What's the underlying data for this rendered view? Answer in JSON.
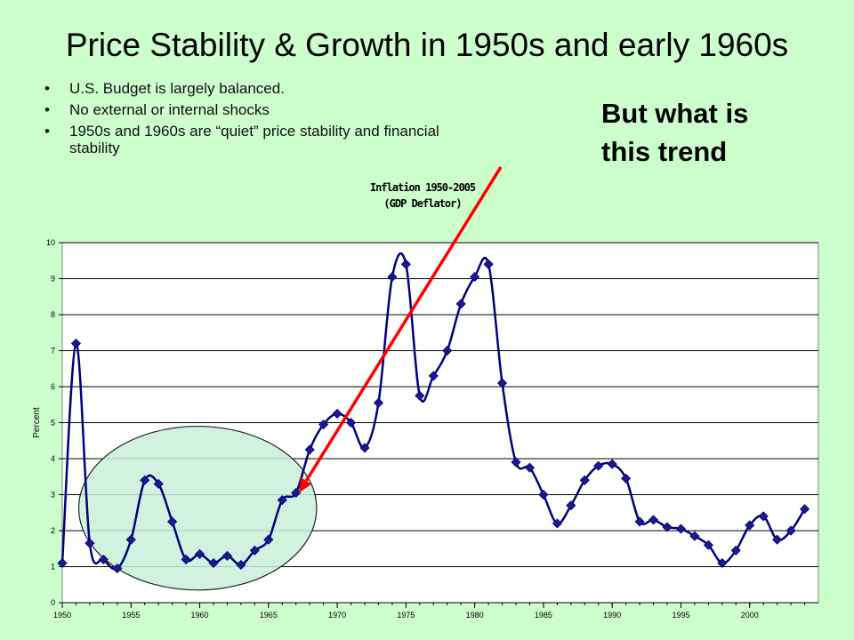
{
  "slide": {
    "title": "Price Stability & Growth in 1950s and early 1960s",
    "bullets": [
      "U.S. Budget is largely balanced.",
      "No external or internal shocks",
      "1950s and 1960s are “quiet”  price stability and financial stability"
    ],
    "bullet_glyph": "•",
    "callout_lines": [
      "But what is",
      "this trend"
    ]
  },
  "chart_data": {
    "type": "line",
    "title_lines": [
      "Inflation 1950-2005",
      "(GDP Deflator)"
    ],
    "xlabel": "",
    "ylabel": "Percent",
    "xlim": [
      1950,
      2005
    ],
    "ylim": [
      0,
      10
    ],
    "grid": true,
    "x_ticks": [
      1950,
      1955,
      1960,
      1965,
      1970,
      1975,
      1980,
      1985,
      1990,
      1995,
      2000
    ],
    "y_ticks": [
      0,
      1,
      2,
      3,
      4,
      5,
      6,
      7,
      8,
      9,
      10
    ],
    "series": [
      {
        "color": "#000080",
        "marker_color": "#1a1a8c",
        "x": [
          1950,
          1951,
          1952,
          1953,
          1954,
          1955,
          1956,
          1957,
          1958,
          1959,
          1960,
          1961,
          1962,
          1963,
          1964,
          1965,
          1966,
          1967,
          1968,
          1969,
          1970,
          1971,
          1972,
          1973,
          1974,
          1975,
          1976,
          1977,
          1978,
          1979,
          1980,
          1981,
          1982,
          1983,
          1984,
          1985,
          1986,
          1987,
          1988,
          1989,
          1990,
          1991,
          1992,
          1993,
          1994,
          1995,
          1996,
          1997,
          1998,
          1999,
          2000,
          2001,
          2002,
          2003,
          2004
        ],
        "y": [
          1.1,
          7.2,
          1.65,
          1.2,
          0.95,
          1.75,
          3.4,
          3.3,
          2.25,
          1.2,
          1.35,
          1.1,
          1.3,
          1.05,
          1.45,
          1.75,
          2.85,
          3.05,
          4.25,
          4.95,
          5.25,
          5.0,
          4.3,
          5.55,
          9.05,
          9.4,
          5.75,
          6.3,
          7.0,
          8.3,
          9.05,
          9.4,
          6.1,
          3.9,
          3.75,
          3.0,
          2.2,
          2.7,
          3.4,
          3.8,
          3.85,
          3.45,
          2.25,
          2.3,
          2.1,
          2.05,
          1.85,
          1.6,
          1.1,
          1.45,
          2.15,
          2.4,
          1.75,
          2.0,
          2.6
        ]
      }
    ],
    "annotations": {
      "ellipse": {
        "label": "",
        "fill": "#c8f0d8",
        "stroke": "#222222",
        "x_range": [
          1951.2,
          1968.5
        ],
        "y_range": [
          0.35,
          4.9
        ]
      },
      "arrow": {
        "color": "#ff0000",
        "from": [
          1981.9,
          12.1
        ],
        "to": [
          1967.2,
          3.05
        ]
      }
    }
  }
}
